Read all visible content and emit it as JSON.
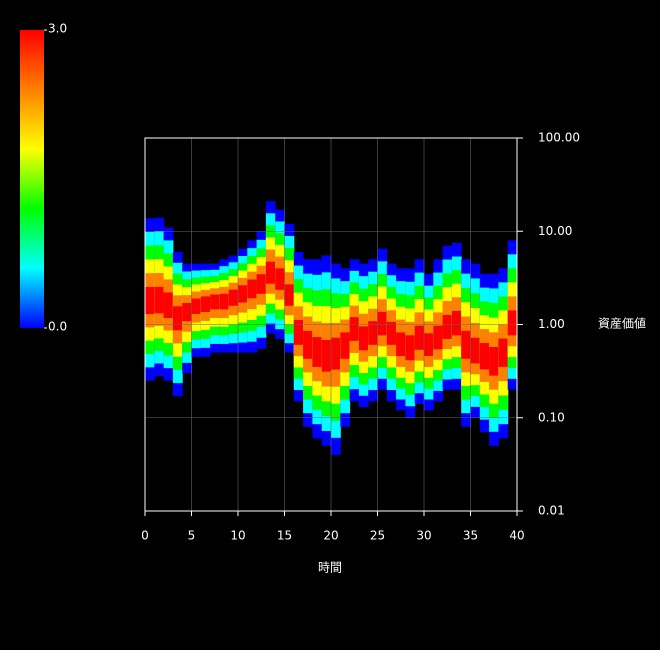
{
  "chart_data": {
    "type": "density",
    "xlabel": "時間",
    "ylabel": "資産価値",
    "xlim": [
      0,
      40
    ],
    "xticks": [
      0,
      5,
      10,
      15,
      20,
      25,
      30,
      35,
      40
    ],
    "ylim": [
      0.01,
      100
    ],
    "log_y": true,
    "grid": true,
    "yticks": [
      {
        "value": 0.01,
        "label": "0.01"
      },
      {
        "value": 0.1,
        "label": "0.10"
      },
      {
        "value": 1,
        "label": "1.00"
      },
      {
        "value": 10,
        "label": "10.00"
      },
      {
        "value": 100,
        "label": "100.00"
      }
    ],
    "colors": [
      "#0000ff",
      "#00ffff",
      "#00ff00",
      "#ffff00",
      "#ff8000",
      "#ff0000"
    ],
    "colorbar_ticks": [
      {
        "value": 0,
        "label": "0.0"
      },
      {
        "value": 3,
        "label": "3.0"
      }
    ],
    "x": [
      0,
      1,
      2,
      3,
      4,
      5,
      6,
      7,
      8,
      9,
      10,
      11,
      12,
      13,
      14,
      15,
      16,
      17,
      18,
      19,
      20,
      21,
      22,
      23,
      24,
      25,
      26,
      27,
      28,
      29,
      30,
      31,
      32,
      33,
      34,
      35,
      36,
      37,
      38,
      39
    ],
    "upper": [
      13.8,
      14,
      11,
      6,
      4.5,
      4.5,
      4.5,
      4.5,
      5,
      5.5,
      6.5,
      8,
      10,
      21,
      17,
      12,
      6,
      5,
      5,
      5.5,
      4.5,
      4,
      5,
      4.5,
      5,
      6.5,
      4.5,
      4,
      4,
      5,
      3.5,
      5,
      7,
      7.5,
      5,
      4.5,
      3.5,
      3.5,
      4,
      8
    ],
    "lower": [
      0.25,
      0.28,
      0.25,
      0.17,
      0.3,
      0.45,
      0.45,
      0.5,
      0.5,
      0.5,
      0.5,
      0.5,
      0.55,
      0.8,
      0.7,
      0.5,
      0.15,
      0.08,
      0.06,
      0.05,
      0.04,
      0.08,
      0.15,
      0.13,
      0.15,
      0.2,
      0.15,
      0.12,
      0.1,
      0.14,
      0.12,
      0.15,
      0.2,
      0.2,
      0.08,
      0.1,
      0.07,
      0.05,
      0.06,
      0.2
    ],
    "median": [
      1.8,
      1.8,
      1.6,
      1.2,
      1.4,
      1.6,
      1.7,
      1.8,
      1.8,
      2,
      2.2,
      2.5,
      2.8,
      3.5,
      3,
      2,
      0.8,
      0.6,
      0.5,
      0.45,
      0.5,
      0.6,
      0.9,
      0.7,
      0.8,
      1,
      0.8,
      0.6,
      0.55,
      0.7,
      0.6,
      0.7,
      0.9,
      1,
      0.6,
      0.5,
      0.45,
      0.4,
      0.5,
      1
    ]
  }
}
